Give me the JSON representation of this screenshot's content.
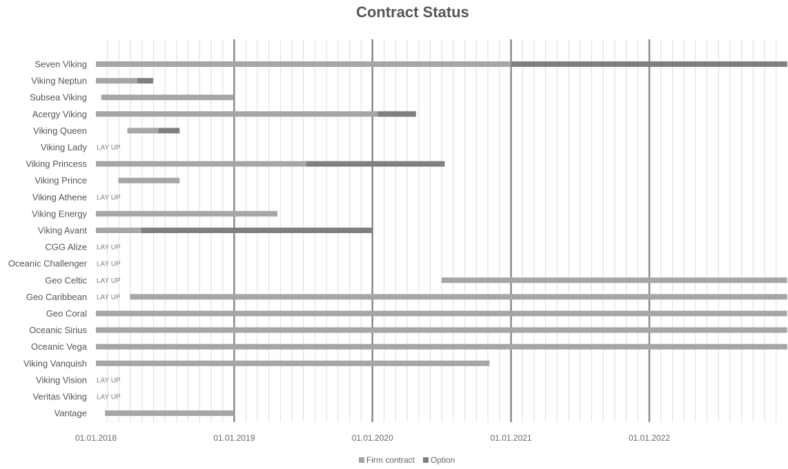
{
  "chart_data": {
    "type": "bar",
    "orientation": "horizontal-gantt",
    "title": "Contract Status",
    "x_axis": {
      "type": "date",
      "range": [
        "01.01.2018",
        "31.12.2022"
      ],
      "tick_labels": [
        "01.01.2018",
        "01.01.2019",
        "01.01.2020",
        "01.01.2021",
        "01.01.2022"
      ],
      "minor_grid": "monthly"
    },
    "legend": {
      "position": "bottom",
      "items": [
        {
          "key": "firm",
          "label": "Firm contract",
          "color": "#a6a6a6"
        },
        {
          "key": "option",
          "label": "Option",
          "color": "#7f7f7f"
        }
      ]
    },
    "layup_text": "LAY UP",
    "rows": [
      {
        "name": "Seven Viking",
        "segments": [
          {
            "type": "firm",
            "start": "2018-01-01",
            "end": "2021-01-01"
          },
          {
            "type": "option",
            "start": "2021-01-01",
            "end": "2022-12-31"
          }
        ]
      },
      {
        "name": "Viking Neptun",
        "segments": [
          {
            "type": "firm",
            "start": "2018-01-01",
            "end": "2018-04-20"
          },
          {
            "type": "option",
            "start": "2018-04-20",
            "end": "2018-06-01"
          }
        ]
      },
      {
        "name": "Subsea Viking",
        "segments": [
          {
            "type": "firm",
            "start": "2018-01-15",
            "end": "2018-12-31"
          }
        ]
      },
      {
        "name": "Acergy Viking",
        "segments": [
          {
            "type": "firm",
            "start": "2018-01-01",
            "end": "2020-01-15"
          },
          {
            "type": "option",
            "start": "2020-01-15",
            "end": "2020-04-25"
          }
        ]
      },
      {
        "name": "Viking Queen",
        "segments": [
          {
            "type": "firm",
            "start": "2018-03-25",
            "end": "2018-06-15"
          },
          {
            "type": "option",
            "start": "2018-06-15",
            "end": "2018-08-10"
          }
        ]
      },
      {
        "name": "Viking Lady",
        "layup": true,
        "segments": []
      },
      {
        "name": "Viking Princess",
        "segments": [
          {
            "type": "firm",
            "start": "2018-01-01",
            "end": "2019-07-10"
          },
          {
            "type": "option",
            "start": "2019-07-10",
            "end": "2020-07-10"
          }
        ]
      },
      {
        "name": "Viking Prince",
        "segments": [
          {
            "type": "firm",
            "start": "2018-03-01",
            "end": "2018-08-10"
          }
        ]
      },
      {
        "name": "Viking Athene",
        "layup": true,
        "segments": []
      },
      {
        "name": "Viking Energy",
        "segments": [
          {
            "type": "firm",
            "start": "2018-01-01",
            "end": "2019-04-25"
          }
        ]
      },
      {
        "name": "Viking Avant",
        "segments": [
          {
            "type": "firm",
            "start": "2018-01-01",
            "end": "2018-04-30"
          },
          {
            "type": "option",
            "start": "2018-04-30",
            "end": "2019-12-31"
          }
        ]
      },
      {
        "name": "CGG Alize",
        "layup": true,
        "segments": []
      },
      {
        "name": "Oceanic Challenger",
        "layup": true,
        "segments": []
      },
      {
        "name": "Geo Celtic",
        "layup": true,
        "segments": [
          {
            "type": "firm",
            "start": "2020-07-01",
            "end": "2022-12-31"
          }
        ]
      },
      {
        "name": "Geo Caribbean",
        "layup": true,
        "segments": [
          {
            "type": "firm",
            "start": "2018-04-01",
            "end": "2022-12-31"
          }
        ]
      },
      {
        "name": "Geo Coral",
        "segments": [
          {
            "type": "firm",
            "start": "2018-01-01",
            "end": "2022-12-31"
          }
        ]
      },
      {
        "name": "Oceanic Sirius",
        "segments": [
          {
            "type": "firm",
            "start": "2018-01-01",
            "end": "2022-12-31"
          }
        ]
      },
      {
        "name": "Oceanic Vega",
        "segments": [
          {
            "type": "firm",
            "start": "2018-01-01",
            "end": "2022-12-31"
          }
        ]
      },
      {
        "name": "Viking Vanquish",
        "segments": [
          {
            "type": "firm",
            "start": "2018-01-01",
            "end": "2020-11-05"
          }
        ]
      },
      {
        "name": "Viking Vision",
        "layup": true,
        "segments": []
      },
      {
        "name": "Veritas Viking",
        "layup": true,
        "segments": []
      },
      {
        "name": "Vantage",
        "segments": [
          {
            "type": "firm",
            "start": "2018-01-25",
            "end": "2018-12-31"
          }
        ]
      }
    ]
  }
}
